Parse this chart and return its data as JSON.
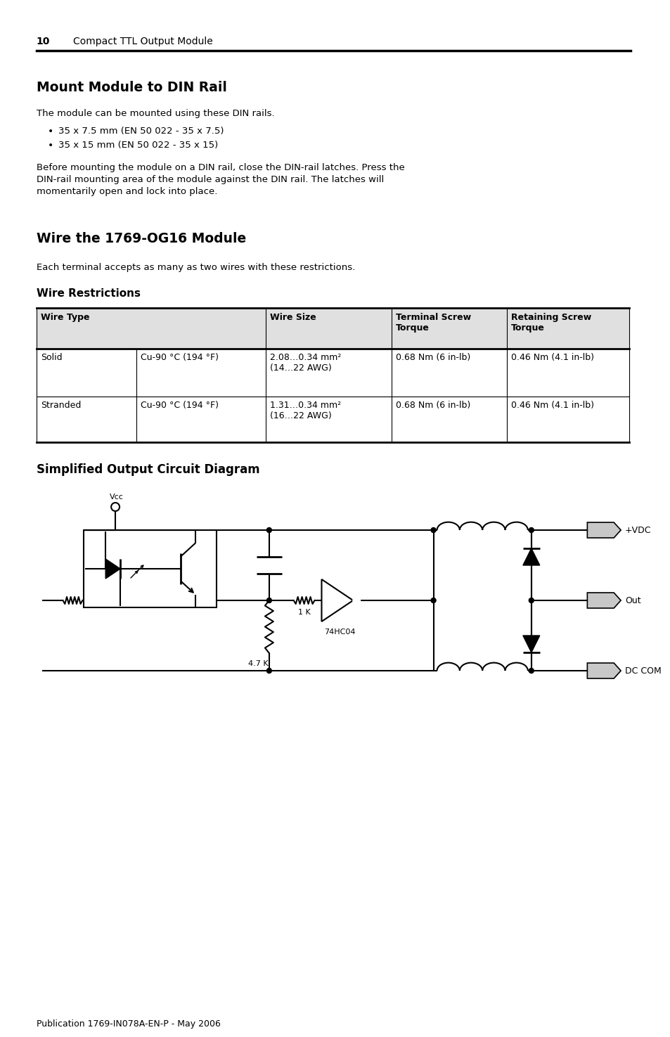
{
  "page_num": "10",
  "header_text": "Compact TTL Output Module",
  "section1_title": "Mount Module to DIN Rail",
  "section1_body": "The module can be mounted using these DIN rails.",
  "section1_bullet1": "35 x 7.5 mm (EN 50 022 - 35 x 7.5)",
  "section1_bullet2": "35 x 15 mm (EN 50 022 - 35 x 15)",
  "section1_note": "Before mounting the module on a DIN rail, close the DIN-rail latches. Press the\nDIN-rail mounting area of the module against the DIN rail. The latches will\nmomentarily open and lock into place.",
  "section2_title": "Wire the 1769-OG16 Module",
  "section2_body": "Each terminal accepts as many as two wires with these restrictions.",
  "table_subtitle": "Wire Restrictions",
  "table_headers": [
    "Wire Type",
    "Wire Size",
    "Terminal Screw\nTorque",
    "Retaining Screw\nTorque"
  ],
  "table_row1": [
    "Solid",
    "Cu-90 °C (194 °F)",
    "2.08…0.34 mm²\n(14…22 AWG)",
    "0.68 Nm (6 in-lb)",
    "0.46 Nm (4.1 in-lb)"
  ],
  "table_row2": [
    "Stranded",
    "Cu-90 °C (194 °F)",
    "1.31…0.34 mm²\n(16…22 AWG)",
    "0.68 Nm (6 in-lb)",
    "0.46 Nm (4.1 in-lb)"
  ],
  "diagram_title": "Simplified Output Circuit Diagram",
  "footer": "Publication 1769-IN078A-EN-P - May 2006",
  "bg_color": "#ffffff",
  "text_color": "#000000"
}
